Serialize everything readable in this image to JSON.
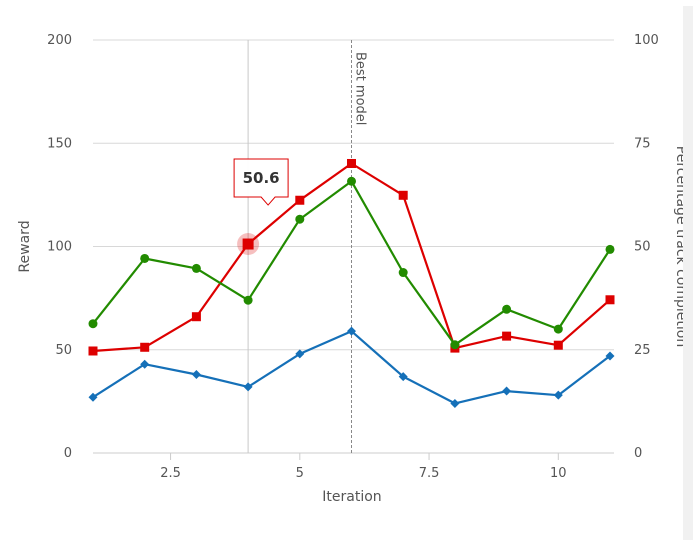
{
  "chart_data": {
    "type": "line",
    "xlabel": "Iteration",
    "ylabel": "Reward",
    "y2label": "Percentage track completion",
    "xlim": [
      1,
      11
    ],
    "ylim": [
      0,
      200
    ],
    "y2lim": [
      0,
      100
    ],
    "x_ticks": [
      "2.5",
      "5",
      "7.5",
      "10"
    ],
    "y_ticks": [
      "0",
      "50",
      "100",
      "150",
      "200"
    ],
    "y2_ticks": [
      "0",
      "25",
      "50",
      "75",
      "100"
    ],
    "grid": true,
    "x": [
      1,
      2,
      3,
      4,
      5,
      6,
      7,
      8,
      9,
      10,
      11
    ],
    "series": [
      {
        "axis": "y2",
        "color": "#dd0000",
        "marker": "square",
        "values": [
          24.7,
          25.6,
          33.0,
          50.6,
          61.2,
          70.1,
          62.4,
          25.4,
          28.3,
          26.1,
          37.1
        ]
      },
      {
        "axis": "y2",
        "color": "#228b00",
        "marker": "circle",
        "values": [
          31.3,
          47.1,
          44.7,
          37.0,
          56.6,
          65.8,
          43.7,
          26.2,
          34.8,
          30.0,
          49.3
        ]
      },
      {
        "axis": "y",
        "color": "#1570b8",
        "marker": "diamond",
        "values": [
          27,
          43,
          38,
          32,
          48,
          59,
          37,
          24,
          30,
          28,
          47
        ]
      }
    ],
    "plot_lines": [
      {
        "x": 6,
        "label": "Best model"
      }
    ],
    "crosshair_x": 4,
    "tooltip": {
      "series_index": 0,
      "point_index": 3,
      "text": "50.6"
    }
  }
}
